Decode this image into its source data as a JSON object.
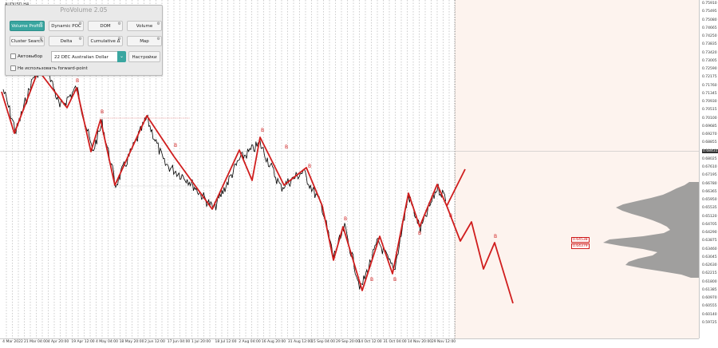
{
  "symbol": "AUDUSD,H4",
  "panel": {
    "title": "ProVolume 2.05",
    "buttons": [
      {
        "label": "Volume Profile",
        "active": true
      },
      {
        "label": "Dynamic POC",
        "active": false
      },
      {
        "label": "DOM",
        "active": false
      },
      {
        "label": "Volume",
        "active": false
      },
      {
        "label": "Cluster Search",
        "active": false
      },
      {
        "label": "Delta",
        "active": false
      },
      {
        "label": "Cumulative Δ",
        "active": false
      },
      {
        "label": "Map",
        "active": false
      }
    ],
    "autoselect_label": "Автовыбор",
    "contract_value": "22 DEC Australian Dollar",
    "settings_label": "Настройки",
    "forward_label": "Не использовать forward-point",
    "accent_color": "#3aa6a0"
  },
  "price_scale": {
    "labels": [
      "0.75910",
      "0.75495",
      "0.75080",
      "0.74665",
      "0.74250",
      "0.73835",
      "0.73420",
      "0.73005",
      "0.72590",
      "0.72175",
      "0.71760",
      "0.71345",
      "0.70930",
      "0.70515",
      "0.70100",
      "0.69685",
      "0.69270",
      "0.68855",
      "0.68440",
      "0.68025",
      "0.67610",
      "0.67195",
      "0.66780",
      "0.66365",
      "0.65950",
      "0.65535",
      "0.65120",
      "0.64705",
      "0.64290",
      "0.63875",
      "0.63460",
      "0.63045",
      "0.62630",
      "0.62215",
      "0.61800",
      "0.61385",
      "0.60970",
      "0.60555",
      "0.60140",
      "0.59725"
    ],
    "current_price": "0.68431"
  },
  "levels": [
    "0.64538",
    "0.64379"
  ],
  "time_axis": {
    "labels": [
      "4 Mar 2022",
      "21 Mar 04:00",
      "4 Apr 20:00",
      "19 Apr 12:00",
      "4 May 04:00",
      "18 May 20:00",
      "2 Jun 12:00",
      "17 Jun 04:00",
      "1 Jul 20:00",
      "18 Jul 12:00",
      "2 Aug 04:00",
      "16 Aug 20:00",
      "31 Aug 12:00",
      "15 Sep 04:00",
      "29 Sep 20:00",
      "14 Oct 12:00",
      "31 Oct 04:00",
      "14 Nov 20:00",
      "29 Nov 12:00"
    ]
  },
  "wave_labels": [
    "B",
    "B",
    "B",
    "B",
    "B",
    "B",
    "B",
    "B",
    "B",
    "B",
    "B",
    "B",
    "B"
  ],
  "colors": {
    "wave": "#d01e1e",
    "price": "#000000",
    "profile": "#8f8f8f",
    "future_bg": "#fdf3ee"
  }
}
